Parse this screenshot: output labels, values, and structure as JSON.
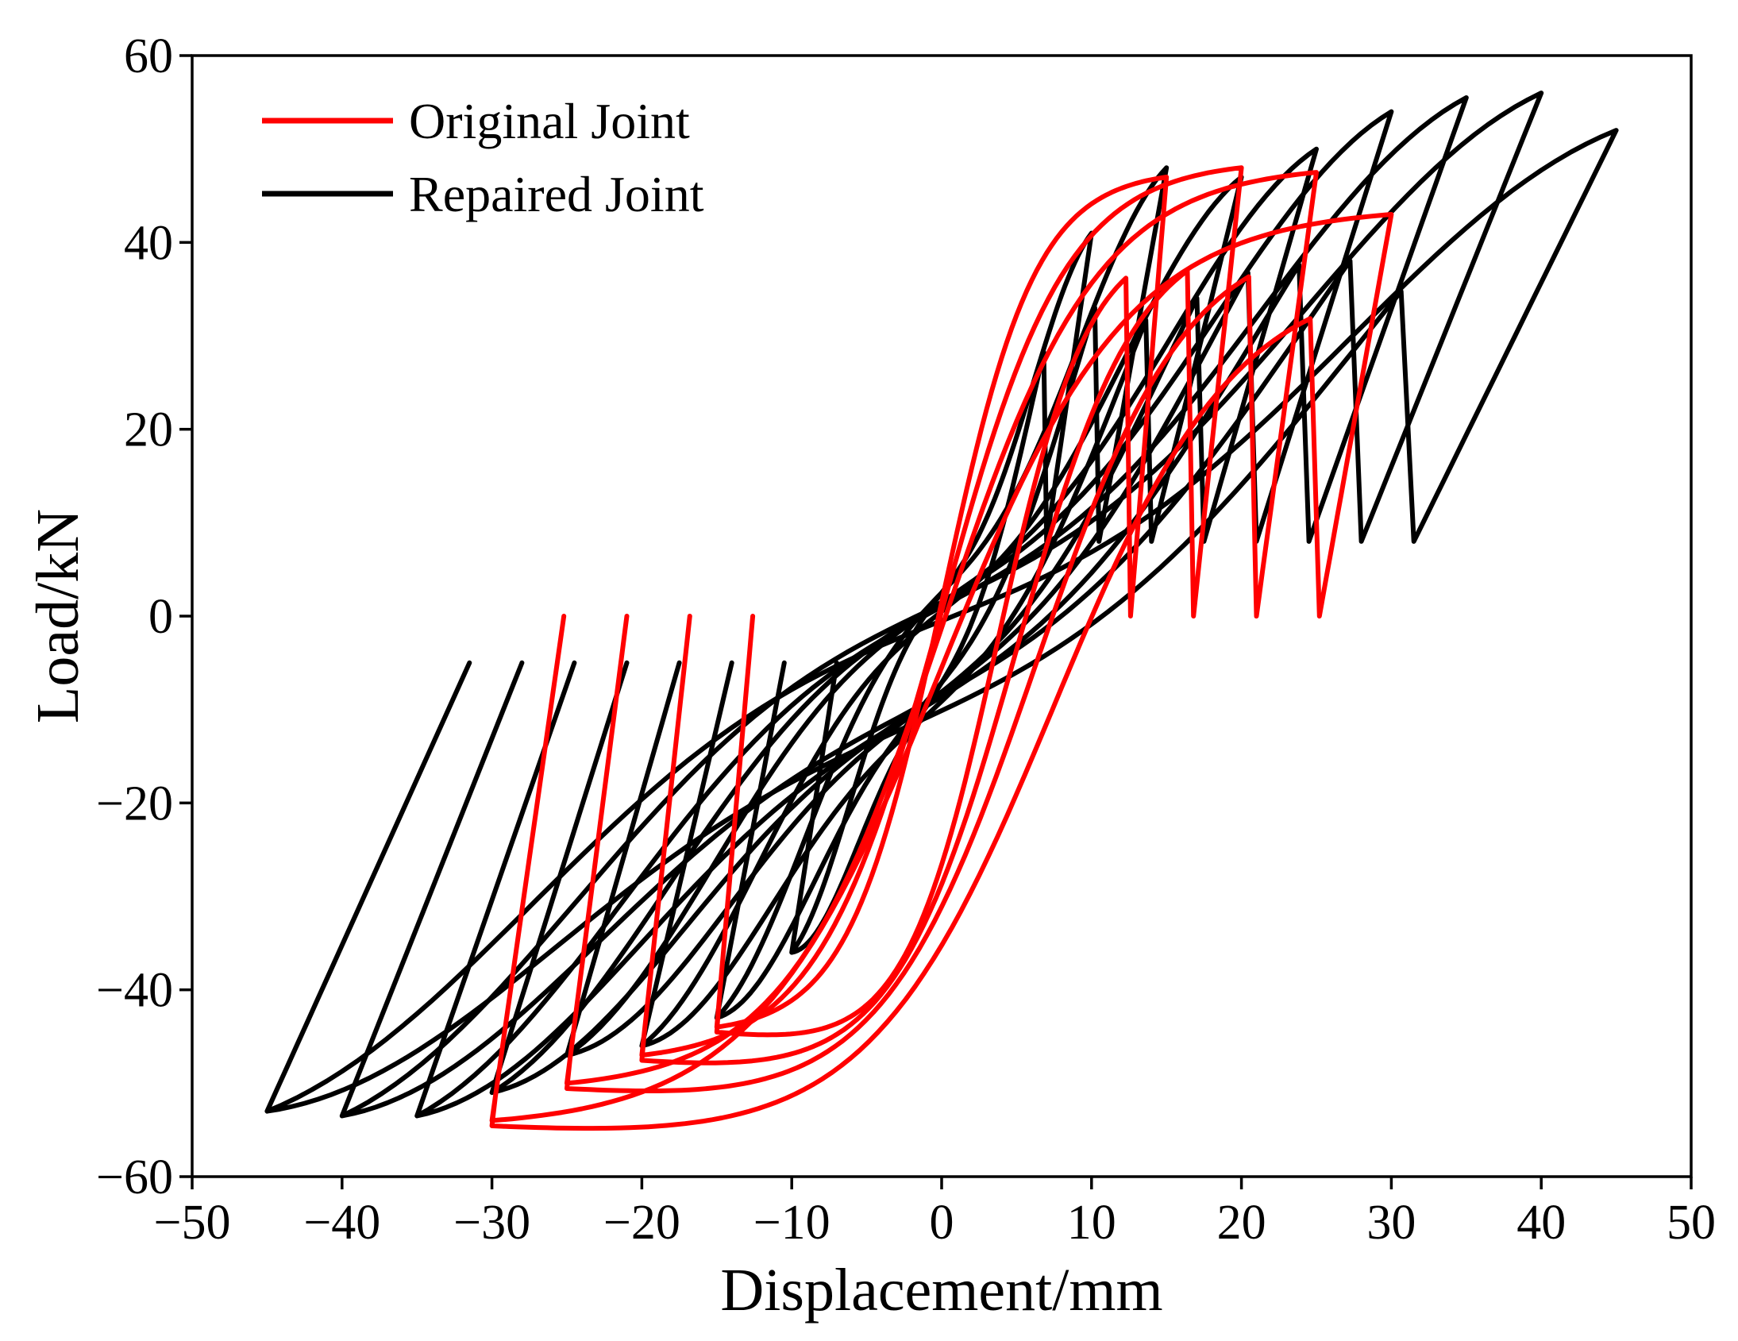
{
  "chart_data": {
    "type": "line",
    "title": "",
    "xlabel": "Displacement/mm",
    "ylabel": "Load/kN",
    "xlim": [
      -50,
      50
    ],
    "ylim": [
      -60,
      60
    ],
    "x_ticks": [
      "−50",
      "−40",
      "−30",
      "−20",
      "−10",
      "0",
      "10",
      "20",
      "30",
      "40",
      "50"
    ],
    "y_ticks": [
      "−60",
      "−40",
      "−20",
      "0",
      "20",
      "40",
      "60"
    ],
    "grid": false,
    "legend_position": "top-left",
    "series": [
      {
        "name": "Original Joint",
        "color": "#ff0000",
        "loops": [
          {
            "amplitude": 15,
            "peak_pos": 47,
            "peak_neg": -44
          },
          {
            "amplitude": 20,
            "peak_pos": 48,
            "peak_neg": -47
          },
          {
            "amplitude": 25,
            "peak_pos": 47.5,
            "peak_neg": -50
          },
          {
            "amplitude": 30,
            "peak_pos": 43,
            "peak_neg": -54
          }
        ]
      },
      {
        "name": "Repaired Joint",
        "color": "#000000",
        "loops": [
          {
            "amplitude": 10,
            "peak_pos": 41,
            "peak_neg": -36
          },
          {
            "amplitude": 15,
            "peak_pos": 48,
            "peak_neg": -43
          },
          {
            "amplitude": 20,
            "peak_pos": 47,
            "peak_neg": -46
          },
          {
            "amplitude": 25,
            "peak_pos": 50,
            "peak_neg": -47
          },
          {
            "amplitude": 30,
            "peak_pos": 54,
            "peak_neg": -51
          },
          {
            "amplitude": 35,
            "peak_pos": 55.5,
            "peak_neg": -53.5
          },
          {
            "amplitude": 40,
            "peak_pos": 56,
            "peak_neg": -53.5
          },
          {
            "amplitude": 45,
            "peak_pos": 52,
            "peak_neg": -53
          }
        ]
      }
    ]
  }
}
